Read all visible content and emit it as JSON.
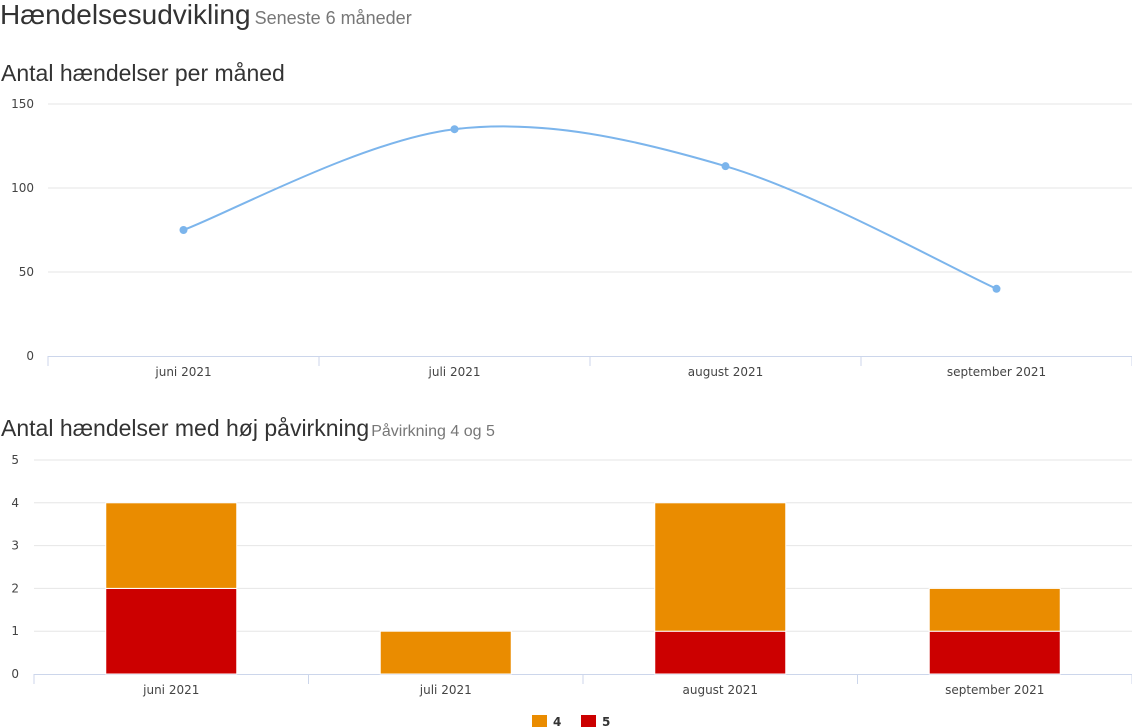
{
  "header": {
    "title": "Hændelsesudvikling",
    "subtitle": "Seneste 6 måneder"
  },
  "chart_data": [
    {
      "type": "line",
      "title": "Antal hændelser per måned",
      "subtitle": "",
      "categories": [
        "juni 2021",
        "juli 2021",
        "august 2021",
        "september 2021"
      ],
      "series": [
        {
          "values": [
            75,
            135,
            113,
            40
          ],
          "color": "#7cb5ec"
        }
      ],
      "ylim": [
        0,
        150
      ],
      "yticks": [
        0,
        50,
        100,
        150
      ],
      "grid": true,
      "smooth": true
    },
    {
      "type": "bar",
      "stacked": true,
      "title": "Antal hændelser med høj påvirkning",
      "subtitle": "Påvirkning 4 og 5",
      "categories": [
        "juni 2021",
        "juli 2021",
        "august 2021",
        "september 2021"
      ],
      "series": [
        {
          "name": "4",
          "values": [
            2,
            1,
            3,
            1
          ],
          "color": "#ea8c00"
        },
        {
          "name": "5",
          "values": [
            2,
            0,
            1,
            1
          ],
          "color": "#cc0000"
        }
      ],
      "ylim": [
        0,
        5
      ],
      "yticks": [
        0,
        1,
        2,
        3,
        4,
        5
      ],
      "grid": true,
      "legend": "bottom-center"
    }
  ]
}
